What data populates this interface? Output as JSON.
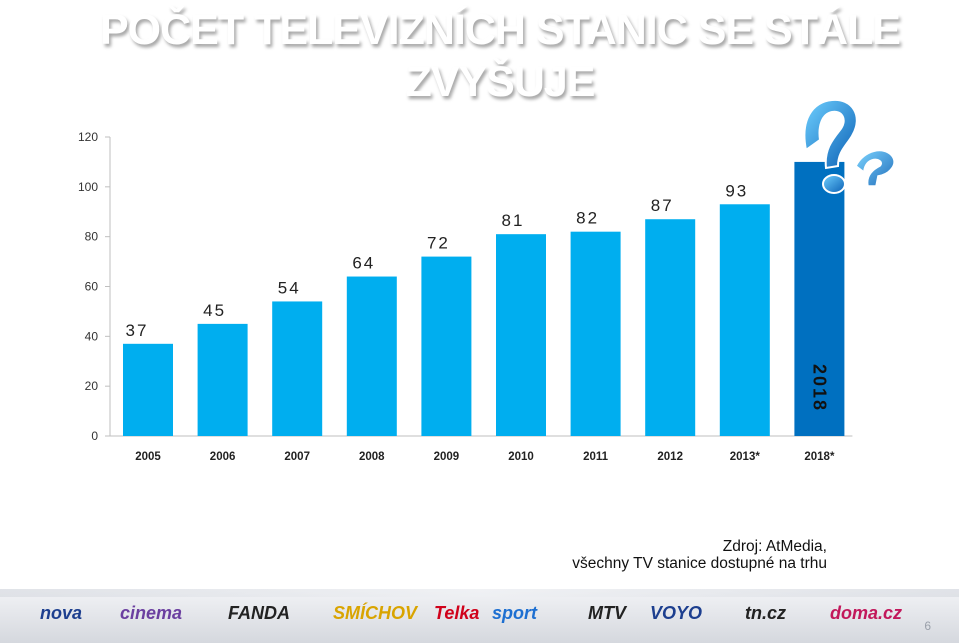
{
  "title": {
    "line1": "POČET TELEVIZNÍCH STANIC SE STÁLE",
    "line2": "ZVYŠUJE"
  },
  "colors": {
    "bar": "#00aeef",
    "bar_highlight": "#0070c0",
    "axis": "#bfbfbf",
    "title": "#ffffff"
  },
  "chart_data": {
    "type": "bar",
    "title": "POČET TELEVIZNÍCH STANIC SE STÁLE ZVYŠUJE",
    "categories": [
      "2005",
      "2006",
      "2007",
      "2008",
      "2009",
      "2010",
      "2011",
      "2012",
      "2013*",
      "2018*"
    ],
    "values": [
      37,
      45,
      54,
      64,
      72,
      81,
      82,
      87,
      93,
      110
    ],
    "data_labels": [
      "37",
      "45",
      "54",
      "64",
      "72",
      "81",
      "82",
      "87",
      "93",
      ""
    ],
    "highlight_label": "2018",
    "yticks": [
      "0",
      "20",
      "40",
      "60",
      "80",
      "100",
      "120"
    ],
    "ylim": [
      0,
      120
    ],
    "xlabel": "",
    "ylabel": "",
    "grid": false,
    "legend": "none"
  },
  "source": {
    "line1": "Zdroj: AtMedia,",
    "line2": "všechny TV stanice dostupné na trhu"
  },
  "logos": [
    {
      "name": "nova",
      "text": "nova",
      "color": "#1d3f8f"
    },
    {
      "name": "nova-cinema",
      "text": "cinema",
      "color": "#6b3fa0"
    },
    {
      "name": "fanda",
      "text": "FANDA",
      "color": "#222222"
    },
    {
      "name": "smichov",
      "text": "SMÍCHOV",
      "color": "#d9a400"
    },
    {
      "name": "telka",
      "text": "Telka",
      "color": "#d0021b"
    },
    {
      "name": "nova-sport",
      "text": "sport",
      "color": "#1d6fd1"
    },
    {
      "name": "mtv",
      "text": "MTV",
      "color": "#222222"
    },
    {
      "name": "voyo",
      "text": "VOYO",
      "color": "#1d3f8f"
    },
    {
      "name": "tncz",
      "text": "tn.cz",
      "color": "#222222"
    },
    {
      "name": "doma",
      "text": "doma.cz",
      "color": "#c2185b"
    }
  ],
  "page_number": "6"
}
